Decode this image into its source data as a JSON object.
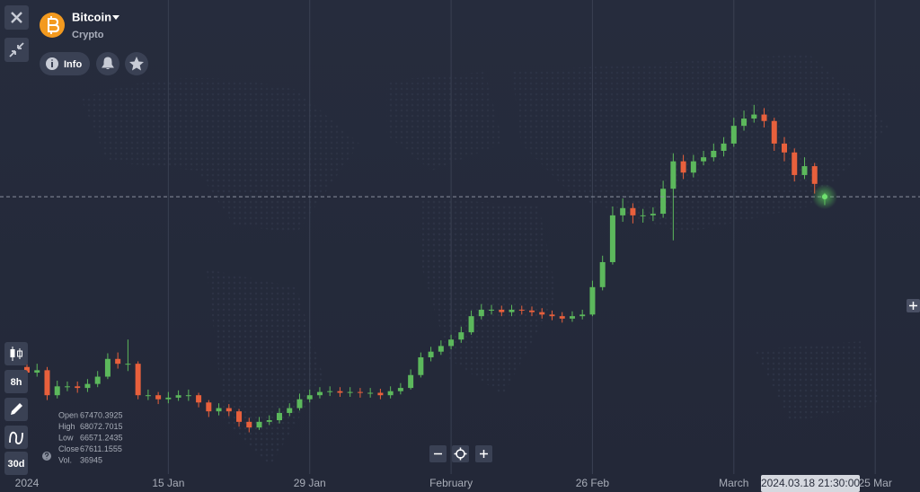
{
  "header": {
    "asset": "Bitcoin",
    "category": "Crypto",
    "info_button": "Info"
  },
  "toolbar": {
    "interval": "8h",
    "period": "30d"
  },
  "crosshair_time": "2024.03.18 21:30:00",
  "ohlc_legend": {
    "labels": [
      "Open",
      "High",
      "Low",
      "Close",
      "Vol."
    ],
    "values": [
      67470.3925,
      68072.7015,
      66571.2435,
      67611.1555,
      36945
    ]
  },
  "chart_data": {
    "type": "candlestick",
    "categories": [
      "2024",
      null,
      null,
      null,
      null,
      null,
      null,
      null,
      null,
      null,
      null,
      null,
      null,
      null,
      "15 Jan",
      null,
      null,
      null,
      null,
      null,
      null,
      null,
      null,
      null,
      null,
      null,
      null,
      null,
      "29 Jan",
      null,
      null,
      null,
      null,
      null,
      null,
      null,
      null,
      null,
      null,
      null,
      null,
      null,
      "February",
      null,
      null,
      null,
      null,
      null,
      null,
      null,
      null,
      null,
      null,
      null,
      null,
      null,
      "26 Feb",
      null,
      null,
      null,
      null,
      null,
      null,
      null,
      null,
      null,
      null,
      null,
      null,
      null,
      "March",
      null,
      null,
      null,
      null,
      null,
      null,
      null,
      null,
      null,
      null,
      null,
      null,
      null,
      "25 Mar",
      null,
      null
    ],
    "open": [
      46500,
      45800,
      46100,
      43000,
      44100,
      44100,
      43900,
      44400,
      45300,
      47500,
      46900,
      46900,
      43000,
      43000,
      42500,
      42700,
      43000,
      43000,
      42100,
      41000,
      41400,
      41000,
      39700,
      39000,
      39700,
      39900,
      40800,
      41400,
      42500,
      43000,
      43400,
      43500,
      43300,
      43400,
      43300,
      43300,
      43000,
      43500,
      43900,
      45500,
      47700,
      48400,
      49100,
      49900,
      50800,
      52800,
      53600,
      53600,
      53300,
      53600,
      53500,
      53300,
      53000,
      52800,
      52500,
      52800,
      53000,
      56400,
      59500,
      65300,
      66200,
      65300,
      65300,
      65500,
      68600,
      72000,
      70600,
      72000,
      72500,
      73300,
      74200,
      76400,
      77300,
      77800,
      77000,
      74200,
      73100,
      70300,
      71400,
      67470.3925,
      null,
      null,
      null,
      null,
      null,
      null,
      null
    ],
    "high": [
      47200,
      46900,
      46500,
      44800,
      44700,
      44700,
      45000,
      46000,
      48200,
      48300,
      49900,
      47200,
      43700,
      43400,
      43400,
      43600,
      43700,
      43300,
      42400,
      42000,
      41900,
      41300,
      40200,
      40300,
      40500,
      41400,
      42000,
      43200,
      43700,
      44000,
      44100,
      44000,
      44000,
      43900,
      43900,
      43800,
      44100,
      44500,
      46200,
      48300,
      49000,
      49800,
      50500,
      51500,
      53500,
      54300,
      54200,
      54100,
      54200,
      54100,
      54000,
      53800,
      53500,
      53300,
      53400,
      53600,
      57200,
      60300,
      66400,
      67400,
      66800,
      66100,
      66300,
      69600,
      73000,
      72800,
      72800,
      73300,
      74200,
      75000,
      77400,
      78300,
      79000,
      78600,
      77400,
      75000,
      73600,
      72500,
      71800,
      68072.7015,
      null,
      null,
      null,
      null,
      null,
      null,
      null
    ],
    "low": [
      45200,
      45300,
      42400,
      42600,
      43500,
      43300,
      43400,
      44000,
      45000,
      46300,
      46000,
      42500,
      42400,
      41900,
      42000,
      42300,
      42300,
      41500,
      40300,
      40500,
      40400,
      39100,
      38400,
      38700,
      39300,
      39500,
      40400,
      41100,
      42100,
      42600,
      42900,
      42800,
      42800,
      42700,
      42700,
      42500,
      42600,
      43100,
      43700,
      45200,
      47200,
      48000,
      48700,
      49500,
      50500,
      52400,
      53000,
      52800,
      52800,
      53000,
      52800,
      52500,
      52300,
      52000,
      52100,
      52400,
      52800,
      56000,
      59200,
      64500,
      64300,
      64400,
      64600,
      65000,
      62200,
      69800,
      70000,
      71500,
      72000,
      72600,
      73800,
      75800,
      76800,
      76200,
      73300,
      72000,
      69500,
      69800,
      68000,
      66571.2435,
      null,
      null,
      null,
      null,
      null,
      null,
      null
    ],
    "close": [
      45800,
      46100,
      43000,
      44100,
      44100,
      43900,
      44400,
      45300,
      47500,
      46900,
      46900,
      43000,
      43000,
      42500,
      42700,
      43000,
      43000,
      42100,
      41000,
      41400,
      41000,
      39700,
      39000,
      39700,
      39900,
      40800,
      41400,
      42500,
      43000,
      43400,
      43500,
      43300,
      43400,
      43300,
      43300,
      43000,
      43500,
      43900,
      45500,
      47700,
      48400,
      49100,
      49900,
      50800,
      52800,
      53600,
      53600,
      53300,
      53600,
      53500,
      53300,
      53000,
      52800,
      52500,
      52800,
      53000,
      56400,
      59500,
      65300,
      66200,
      65300,
      65300,
      65500,
      68600,
      72000,
      70600,
      72000,
      72500,
      73300,
      74200,
      76400,
      77300,
      77800,
      77000,
      74200,
      73100,
      70300,
      71400,
      69200,
      67611.1555,
      null,
      null,
      null,
      null,
      null,
      null,
      null
    ],
    "ylim": [
      31000,
      92000
    ],
    "up_color": "#5cb85c",
    "down_color": "#e8603c",
    "price_line": true,
    "grid": true
  }
}
